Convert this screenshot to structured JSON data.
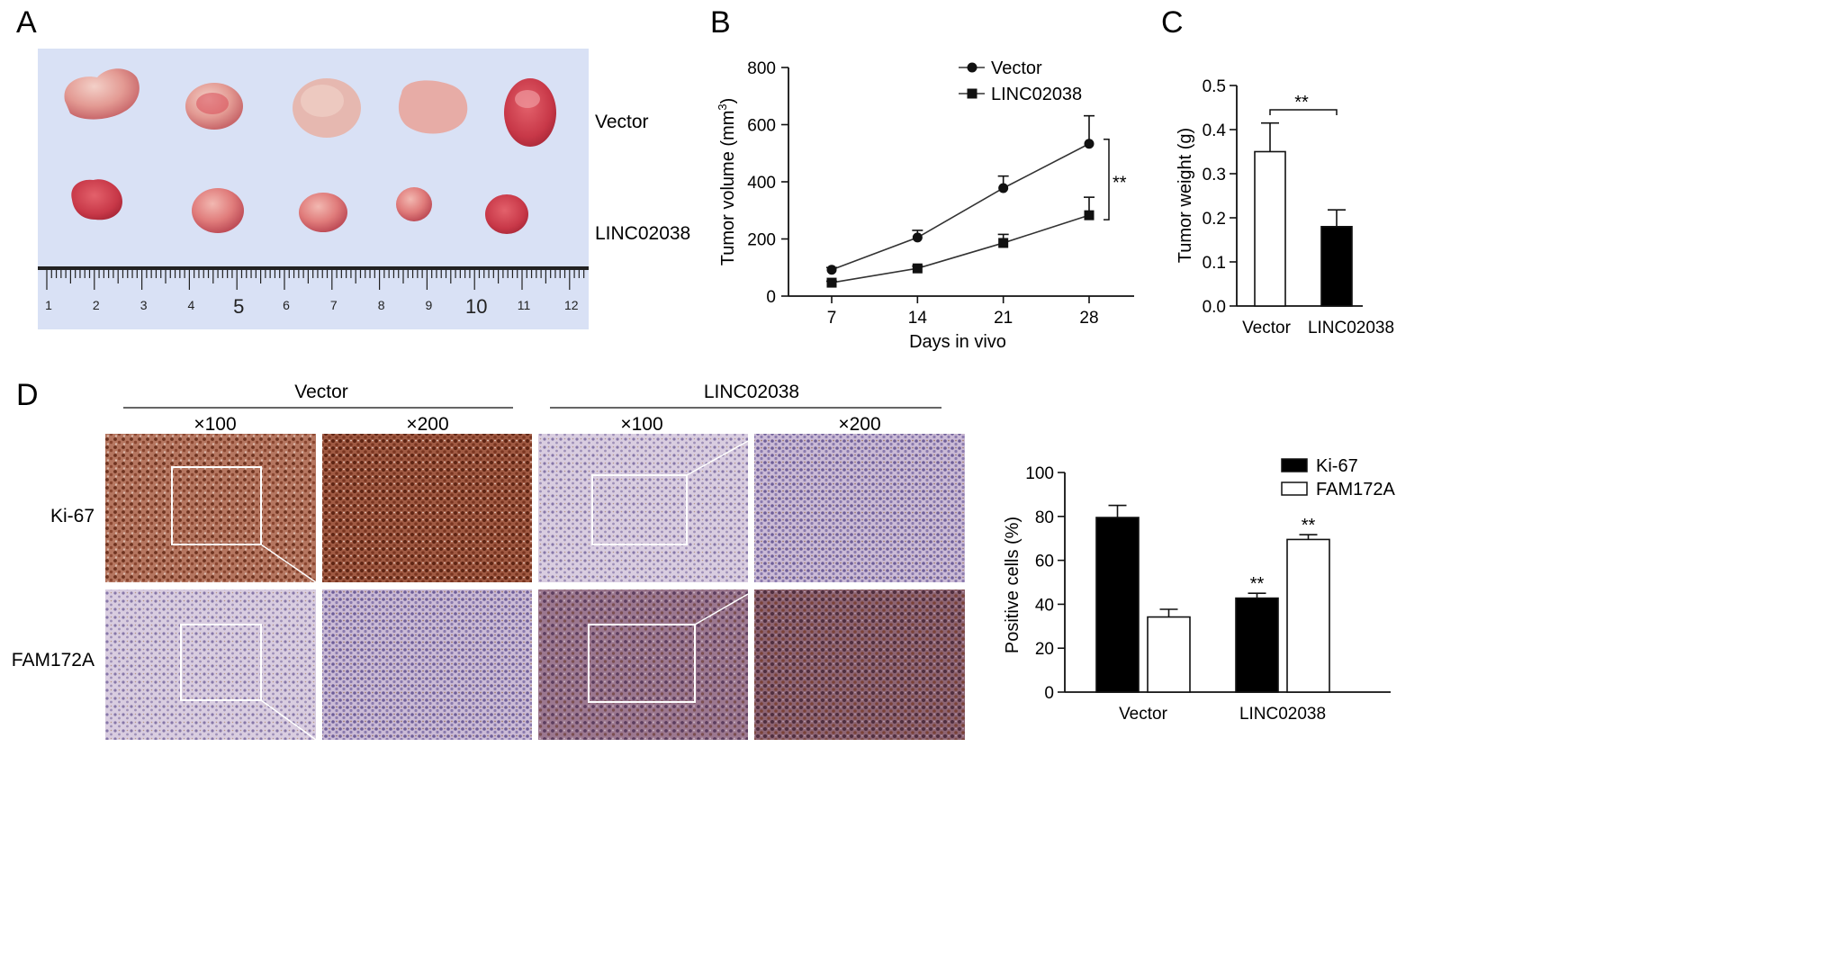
{
  "panels": {
    "a": "A",
    "b": "B",
    "c": "C",
    "d": "D"
  },
  "panel_a": {
    "row_labels": [
      "Vector",
      "LINC02038"
    ],
    "ruler_numbers": [
      "1",
      "2",
      "3",
      "4",
      "5",
      "6",
      "7",
      "8",
      "9",
      "10",
      "11",
      "12"
    ]
  },
  "panel_d_images": {
    "groups": [
      "Vector",
      "LINC02038"
    ],
    "magnifications": [
      "×100",
      "×200",
      "×100",
      "×200"
    ],
    "row_labels": [
      "Ki-67",
      "FAM172A"
    ]
  },
  "colors": {
    "vector_tumor": "#e8a5a0",
    "linc_tumor": "#e17e7d",
    "photo_bg": "#d9e1f5"
  },
  "chart_data": [
    {
      "id": "B",
      "type": "line",
      "xlabel": "Days in vivo",
      "ylabel": "Tumor volume (mm³)",
      "ylabel_parts": [
        "Tumor volume (mm",
        "3",
        ")"
      ],
      "x": [
        7,
        14,
        21,
        28
      ],
      "ylim": [
        0,
        800
      ],
      "yticks": [
        0,
        200,
        400,
        600,
        800
      ],
      "legend_placement": "top-right",
      "series": [
        {
          "name": "Vector",
          "marker": "circle",
          "values": [
            92,
            205,
            378,
            533
          ],
          "errors": [
            8,
            25,
            42,
            98
          ]
        },
        {
          "name": "LINC02038",
          "marker": "square",
          "values": [
            47,
            97,
            186,
            283
          ],
          "errors": [
            5,
            8,
            30,
            63
          ]
        }
      ],
      "annotation": "**"
    },
    {
      "id": "C",
      "type": "bar",
      "ylabel": "Tumor weight (g)",
      "categories": [
        "Vector",
        "LINC02038"
      ],
      "values": [
        0.35,
        0.18
      ],
      "errors": [
        0.065,
        0.038
      ],
      "fills": [
        "#ffffff",
        "#000000"
      ],
      "ylim": [
        0,
        0.5
      ],
      "yticks": [
        "0.0",
        "0.1",
        "0.2",
        "0.3",
        "0.4",
        "0.5"
      ],
      "annotation": "**"
    },
    {
      "id": "D",
      "type": "bar",
      "ylabel": "Positive cells (%)",
      "categories": [
        "Vector",
        "LINC02038"
      ],
      "ylim": [
        0,
        100
      ],
      "yticks": [
        0,
        20,
        40,
        60,
        80,
        100
      ],
      "legend_placement": "top-right",
      "series": [
        {
          "name": "Ki-67",
          "fill": "#000000",
          "values": [
            79.5,
            42.8
          ],
          "errors": [
            5.5,
            2.2
          ],
          "marks": [
            "",
            "**"
          ]
        },
        {
          "name": "FAM172A",
          "fill": "#ffffff",
          "values": [
            34.2,
            69.5
          ],
          "errors": [
            3.5,
            2.2
          ],
          "marks": [
            "",
            "**"
          ]
        }
      ]
    }
  ]
}
